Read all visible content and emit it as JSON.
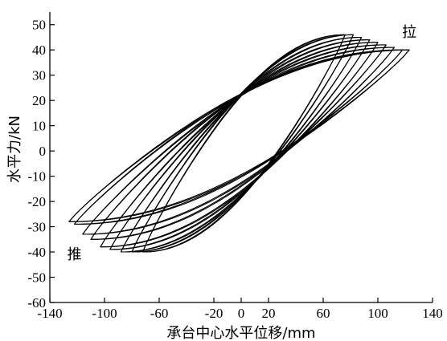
{
  "chart_data": {
    "type": "line",
    "xlabel": "承台中心水平位移/mm",
    "ylabel": "水平力/kN",
    "xlim": [
      -140,
      140
    ],
    "ylim": [
      -60,
      55
    ],
    "x_ticks": [
      -140,
      -100,
      -60,
      -20,
      0,
      20,
      60,
      100,
      140
    ],
    "y_ticks": [
      -60,
      -50,
      -40,
      -30,
      -20,
      -10,
      0,
      10,
      20,
      30,
      40,
      50
    ],
    "grid": false,
    "annotations": [
      {
        "text": "拉",
        "x": 123,
        "y": 47
      },
      {
        "text": "推",
        "x": -122,
        "y": -41
      }
    ],
    "loops": [
      {
        "xmax": 76,
        "fmax": 46,
        "xmin": -72,
        "fmin": -40
      },
      {
        "xmax": 82,
        "fmax": 46,
        "xmin": -80,
        "fmin": -40
      },
      {
        "xmax": 88,
        "fmax": 45,
        "xmin": -88,
        "fmin": -40
      },
      {
        "xmax": 94,
        "fmax": 44,
        "xmin": -96,
        "fmin": -39
      },
      {
        "xmax": 100,
        "fmax": 43,
        "xmin": -103,
        "fmin": -38
      },
      {
        "xmax": 106,
        "fmax": 42,
        "xmin": -110,
        "fmin": -35
      },
      {
        "xmax": 112,
        "fmax": 41,
        "xmin": -116,
        "fmin": -33
      },
      {
        "xmax": 118,
        "fmax": 40,
        "xmin": -122,
        "fmin": -29
      },
      {
        "xmax": 123,
        "fmax": 40,
        "xmin": -126,
        "fmin": -28
      }
    ]
  }
}
